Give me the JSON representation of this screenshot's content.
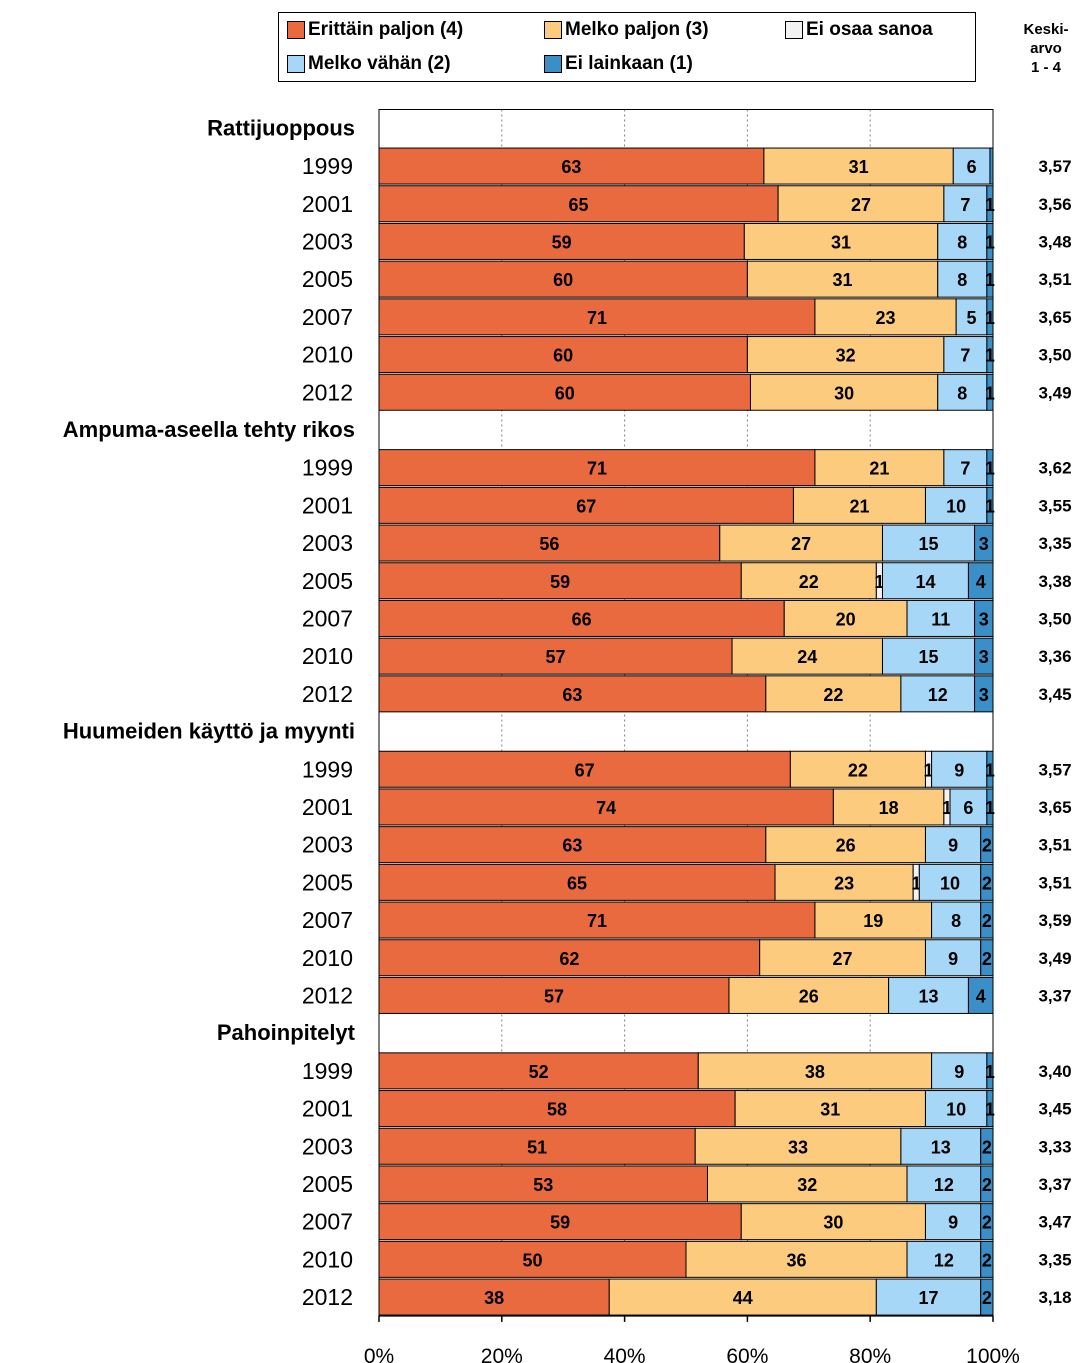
{
  "colors": {
    "erittain": "#e96a3f",
    "melko_paljon": "#fdcb7e",
    "ei_osaa": "#f2f2f2",
    "melko_vahan": "#a6d7f7",
    "ei_lainkaan": "#3b8fc8"
  },
  "legend": {
    "items": [
      {
        "label": "Erittäin paljon (4)",
        "color": "#e96a3f"
      },
      {
        "label": "Melko paljon (3)",
        "color": "#fdcb7e"
      },
      {
        "label": "Ei osaa sanoa",
        "color": "#f2f2f2"
      },
      {
        "label": "Melko vähän (2)",
        "color": "#a6d7f7"
      },
      {
        "label": "Ei lainkaan (1)",
        "color": "#3b8fc8"
      }
    ]
  },
  "mean_header": {
    "line1": "Keski-",
    "line2": "arvo",
    "line3": "1 - 4"
  },
  "chart_data": {
    "type": "bar",
    "orientation": "horizontal",
    "stacked": "100%",
    "series_names": [
      "Erittäin paljon (4)",
      "Melko paljon (3)",
      "Ei osaa sanoa",
      "Melko vähän (2)",
      "Ei lainkaan (1)"
    ],
    "x_ticks": [
      "0%",
      "20%",
      "40%",
      "60%",
      "80%",
      "100%"
    ],
    "xlim": [
      0,
      100
    ],
    "grid": "vertical dotted at 20% steps",
    "legend_position": "top",
    "groups": [
      {
        "name": "Rattijuoppous",
        "rows": [
          {
            "year": "1999",
            "values": [
              63,
              31,
              0,
              6,
              0.5
            ],
            "labels": [
              "63",
              "31",
              "",
              "6",
              ""
            ],
            "mean": "3,57"
          },
          {
            "year": "2001",
            "values": [
              65,
              27,
              0,
              7,
              1
            ],
            "labels": [
              "65",
              "27",
              "",
              "7",
              "1"
            ],
            "mean": "3,56"
          },
          {
            "year": "2003",
            "values": [
              59.5,
              31.5,
              0,
              8,
              1
            ],
            "labels": [
              "59",
              "31",
              "",
              "8",
              "1"
            ],
            "mean": "3,48"
          },
          {
            "year": "2005",
            "values": [
              60,
              31,
              0,
              8,
              1
            ],
            "labels": [
              "60",
              "31",
              "",
              "8",
              "1"
            ],
            "mean": "3,51"
          },
          {
            "year": "2007",
            "values": [
              71,
              23,
              0,
              5,
              1
            ],
            "labels": [
              "71",
              "23",
              "",
              "5",
              "1"
            ],
            "mean": "3,65"
          },
          {
            "year": "2010",
            "values": [
              60,
              32,
              0,
              7,
              1
            ],
            "labels": [
              "60",
              "32",
              "",
              "7",
              "1"
            ],
            "mean": "3,50"
          },
          {
            "year": "2012",
            "values": [
              60.5,
              30.5,
              0,
              8,
              1
            ],
            "labels": [
              "60",
              "30",
              "",
              "8",
              "1"
            ],
            "mean": "3,49"
          }
        ]
      },
      {
        "name": "Ampuma-aseella tehty rikos",
        "rows": [
          {
            "year": "1999",
            "values": [
              71,
              21,
              0,
              7,
              1
            ],
            "labels": [
              "71",
              "21",
              "",
              "7",
              "1"
            ],
            "mean": "3,62"
          },
          {
            "year": "2001",
            "values": [
              67.5,
              21.5,
              0,
              10,
              1
            ],
            "labels": [
              "67",
              "21",
              "",
              "10",
              "1"
            ],
            "mean": "3,55"
          },
          {
            "year": "2003",
            "values": [
              55.5,
              26.5,
              0,
              15,
              3
            ],
            "labels": [
              "56",
              "27",
              "",
              "15",
              "3"
            ],
            "mean": "3,35"
          },
          {
            "year": "2005",
            "values": [
              59,
              22,
              1,
              14,
              4
            ],
            "labels": [
              "59",
              "22",
              "1",
              "14",
              "4"
            ],
            "mean": "3,38"
          },
          {
            "year": "2007",
            "values": [
              66,
              20,
              0,
              11,
              3
            ],
            "labels": [
              "66",
              "20",
              "",
              "11",
              "3"
            ],
            "mean": "3,50"
          },
          {
            "year": "2010",
            "values": [
              57.5,
              24.5,
              0,
              15,
              3
            ],
            "labels": [
              "57",
              "24",
              "",
              "15",
              "3"
            ],
            "mean": "3,36"
          },
          {
            "year": "2012",
            "values": [
              63,
              22,
              0,
              12,
              3
            ],
            "labels": [
              "63",
              "22",
              "",
              "12",
              "3"
            ],
            "mean": "3,45"
          }
        ]
      },
      {
        "name": "Huumeiden käyttö ja myynti",
        "rows": [
          {
            "year": "1999",
            "values": [
              67,
              22,
              1,
              9,
              1
            ],
            "labels": [
              "67",
              "22",
              "1",
              "9",
              "1"
            ],
            "mean": "3,57"
          },
          {
            "year": "2001",
            "values": [
              74,
              18,
              1,
              6,
              1
            ],
            "labels": [
              "74",
              "18",
              "1",
              "6",
              "1"
            ],
            "mean": "3,65"
          },
          {
            "year": "2003",
            "values": [
              63,
              26,
              0,
              9,
              2
            ],
            "labels": [
              "63",
              "26",
              "",
              "9",
              "2"
            ],
            "mean": "3,51"
          },
          {
            "year": "2005",
            "values": [
              64.5,
              22.5,
              1,
              10,
              2
            ],
            "labels": [
              "65",
              "23",
              "1",
              "10",
              "2"
            ],
            "mean": "3,51"
          },
          {
            "year": "2007",
            "values": [
              71,
              19,
              0,
              8,
              2
            ],
            "labels": [
              "71",
              "19",
              "",
              "8",
              "2"
            ],
            "mean": "3,59"
          },
          {
            "year": "2010",
            "values": [
              62,
              27,
              0,
              9,
              2
            ],
            "labels": [
              "62",
              "27",
              "",
              "9",
              "2"
            ],
            "mean": "3,49"
          },
          {
            "year": "2012",
            "values": [
              57,
              26,
              0,
              13,
              4
            ],
            "labels": [
              "57",
              "26",
              "",
              "13",
              "4"
            ],
            "mean": "3,37"
          }
        ]
      },
      {
        "name": "Pahoinpitelyt",
        "rows": [
          {
            "year": "1999",
            "values": [
              52,
              38,
              0,
              9,
              1
            ],
            "labels": [
              "52",
              "38",
              "",
              "9",
              "1"
            ],
            "mean": "3,40"
          },
          {
            "year": "2001",
            "values": [
              58,
              31,
              0,
              10,
              1
            ],
            "labels": [
              "58",
              "31",
              "",
              "10",
              "1"
            ],
            "mean": "3,45"
          },
          {
            "year": "2003",
            "values": [
              51.5,
              33.5,
              0,
              13,
              2
            ],
            "labels": [
              "51",
              "33",
              "",
              "13",
              "2"
            ],
            "mean": "3,33"
          },
          {
            "year": "2005",
            "values": [
              53.5,
              32.5,
              0,
              12,
              2
            ],
            "labels": [
              "53",
              "32",
              "",
              "12",
              "2"
            ],
            "mean": "3,37"
          },
          {
            "year": "2007",
            "values": [
              59,
              30,
              0,
              9,
              2
            ],
            "labels": [
              "59",
              "30",
              "",
              "9",
              "2"
            ],
            "mean": "3,47"
          },
          {
            "year": "2010",
            "values": [
              50,
              36,
              0,
              12,
              2
            ],
            "labels": [
              "50",
              "36",
              "",
              "12",
              "2"
            ],
            "mean": "3,35"
          },
          {
            "year": "2012",
            "values": [
              37.5,
              43.5,
              0,
              17,
              2
            ],
            "labels": [
              "38",
              "44",
              "",
              "17",
              "2"
            ],
            "mean": "3,18"
          }
        ]
      }
    ]
  }
}
